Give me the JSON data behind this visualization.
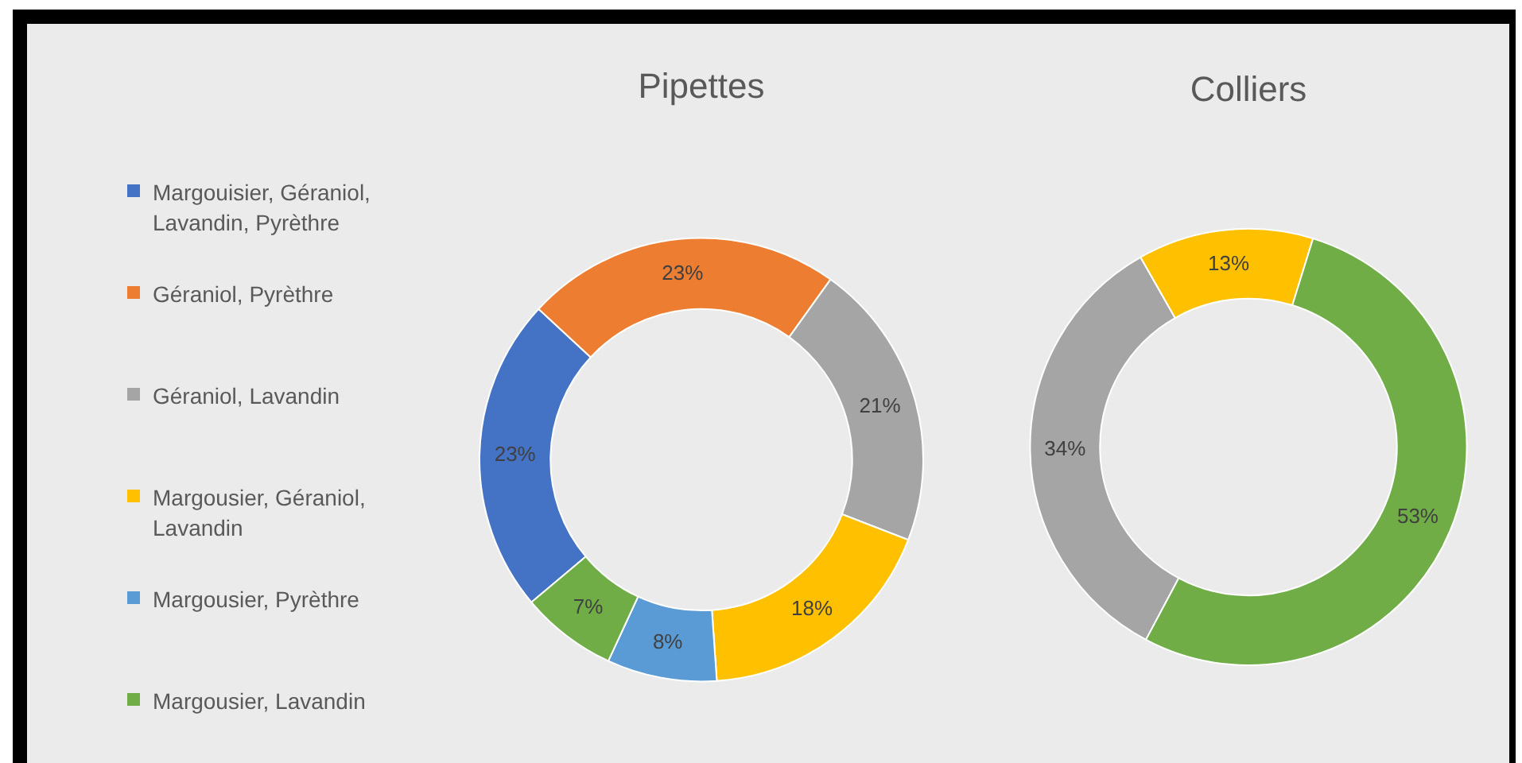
{
  "chart_data": {
    "type": "donut",
    "legend": "left",
    "categories": [
      "Margouisier, Géraniol, Lavandin, Pyrèthre",
      "Géraniol, Pyrèthre",
      "Géraniol, Lavandin",
      "Margousier, Géraniol, Lavandin",
      "Margousier, Pyrèthre",
      "Margousier, Lavandin"
    ],
    "colors": [
      "#4472c4",
      "#ed7d31",
      "#a5a5a5",
      "#ffc000",
      "#5b9bd5",
      "#70ad47"
    ],
    "series": [
      {
        "name": "Pipettes",
        "values": [
          23,
          23,
          21,
          18,
          8,
          7
        ],
        "value_labels": [
          "23%",
          "23%",
          "21%",
          "18%",
          "8%",
          "7%"
        ]
      },
      {
        "name": "Colliers",
        "values": [
          null,
          null,
          34,
          13,
          null,
          53
        ],
        "value_labels": [
          null,
          null,
          "34%",
          "13%",
          null,
          "53%"
        ]
      }
    ]
  }
}
